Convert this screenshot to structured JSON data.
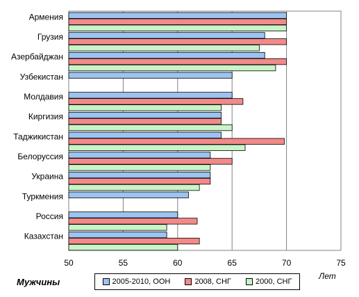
{
  "chart_data": {
    "type": "bar",
    "orientation": "horizontal",
    "categories": [
      "Армения",
      "Грузия",
      "Азербайджан",
      "Узбекистан",
      "Молдавия",
      "Киргизия",
      "Таджикистан",
      "Белоруссия",
      "Украина",
      "Туркмения",
      "Россия",
      "Казахстан"
    ],
    "series": [
      {
        "name": "2005-2010, ООН",
        "color": "#9DC3F0",
        "values": [
          70,
          68,
          68,
          65,
          65,
          64,
          64,
          63,
          63,
          61,
          60,
          59
        ]
      },
      {
        "name": "2008, СНГ",
        "color": "#F28A8A",
        "values": [
          70,
          70,
          70,
          null,
          66,
          64,
          69.8,
          65,
          63,
          null,
          61.8,
          62
        ]
      },
      {
        "name": "2000, СНГ",
        "color": "#C8F5C8",
        "values": [
          70,
          67.5,
          69,
          null,
          64,
          65,
          66.2,
          63,
          62,
          null,
          59,
          60
        ]
      }
    ],
    "xlim": [
      50,
      75
    ],
    "xticks": [
      "50",
      "55",
      "60",
      "65",
      "70",
      "75"
    ],
    "grid": "vertical",
    "legend_position": "bottom"
  },
  "gender_label": "Мужчины",
  "units_label": "Лет"
}
